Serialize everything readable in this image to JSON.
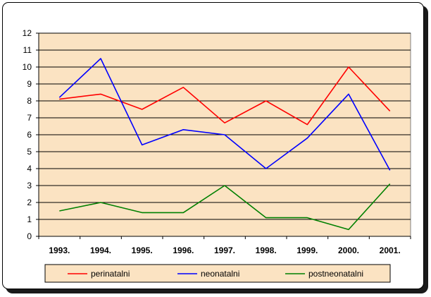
{
  "chart_data": {
    "type": "line",
    "categories": [
      "1993.",
      "1994.",
      "1995.",
      "1996.",
      "1997.",
      "1998.",
      "1999.",
      "2000.",
      "2001."
    ],
    "ylim": [
      0,
      12
    ],
    "yticks": [
      0,
      1,
      2,
      3,
      4,
      5,
      6,
      7,
      8,
      9,
      10,
      11,
      12
    ],
    "grid": true,
    "legend_position": "bottom",
    "plot_background": "#fbe3c2",
    "series": [
      {
        "name": "perinatalni",
        "color": "#ff0000",
        "values": [
          8.1,
          8.4,
          7.5,
          8.8,
          6.7,
          8.0,
          6.6,
          10.0,
          7.4
        ]
      },
      {
        "name": "neonatalni",
        "color": "#0000ff",
        "values": [
          8.2,
          10.5,
          5.4,
          6.3,
          6.0,
          4.0,
          5.8,
          8.4,
          3.9
        ]
      },
      {
        "name": "postneonatalni",
        "color": "#008000",
        "values": [
          1.5,
          2.0,
          1.4,
          1.4,
          3.0,
          1.1,
          1.1,
          0.4,
          3.1
        ]
      }
    ]
  }
}
